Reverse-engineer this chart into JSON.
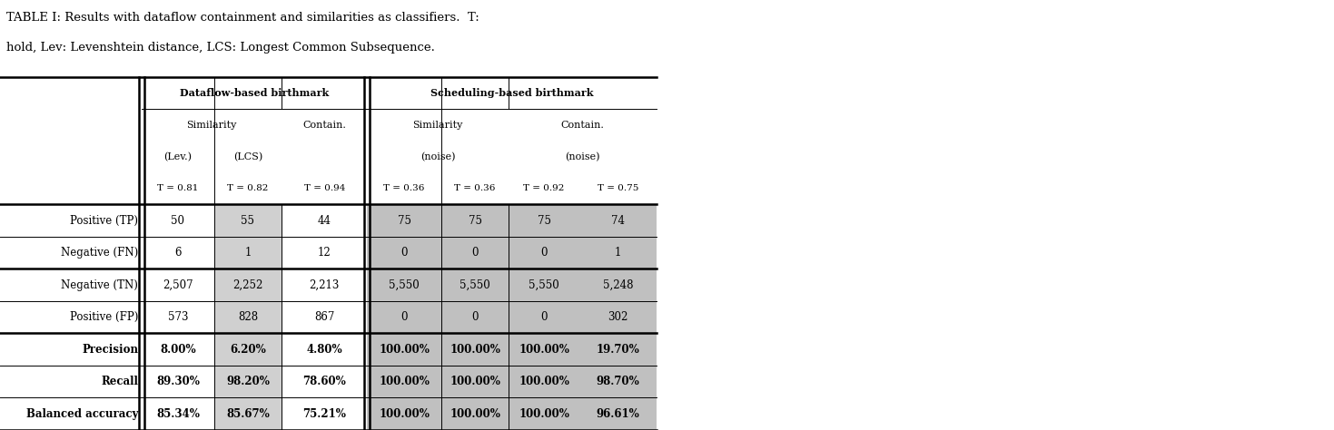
{
  "title_line1": "TABLE I: Results with dataflow containment and similarities as classifiers.  T:",
  "title_line2": "hold, Lev: Levenshtein distance, LCS: Longest Common Subsequence.",
  "col_headers_df_main": "Dataflow-based birthmark",
  "col_headers_sch_main": "Scheduling-based birthmark",
  "sim_label": "Similarity",
  "contain_label": "Contain.",
  "lev_label": "(Lev.)",
  "lcs_label": "(LCS)",
  "noise_label": "(noise)",
  "t_vals": [
    "T = 0.81",
    "T = 0.82",
    "T = 0.94",
    "T = 0.36",
    "T = 0.36",
    "T = 0.92",
    "T = 0.75"
  ],
  "row_labels": [
    "Positive (TP)",
    "Negative (FN)",
    "Negative (TN)",
    "Positive (FP)",
    "Precision",
    "Recall",
    "Balanced accuracy"
  ],
  "data": [
    [
      "50",
      "55",
      "44",
      "75",
      "75",
      "75",
      "74"
    ],
    [
      "6",
      "1",
      "12",
      "0",
      "0",
      "0",
      "1"
    ],
    [
      "2,507",
      "2,252",
      "2,213",
      "5,550",
      "5,550",
      "5,550",
      "5,248"
    ],
    [
      "573",
      "828",
      "867",
      "0",
      "0",
      "0",
      "302"
    ],
    [
      "8.00%",
      "6.20%",
      "4.80%",
      "100.00%",
      "100.00%",
      "100.00%",
      "19.70%"
    ],
    [
      "89.30%",
      "98.20%",
      "78.60%",
      "100.00%",
      "100.00%",
      "100.00%",
      "98.70%"
    ],
    [
      "85.34%",
      "85.67%",
      "75.21%",
      "100.00%",
      "100.00%",
      "100.00%",
      "96.61%"
    ]
  ],
  "bold_rows": [
    4,
    5,
    6
  ],
  "light_gray": "#d0d0d0",
  "scheduling_gray": "#c0c0c0",
  "white": "#ffffff",
  "fig_width": 14.69,
  "fig_height": 4.74,
  "dpi": 100
}
